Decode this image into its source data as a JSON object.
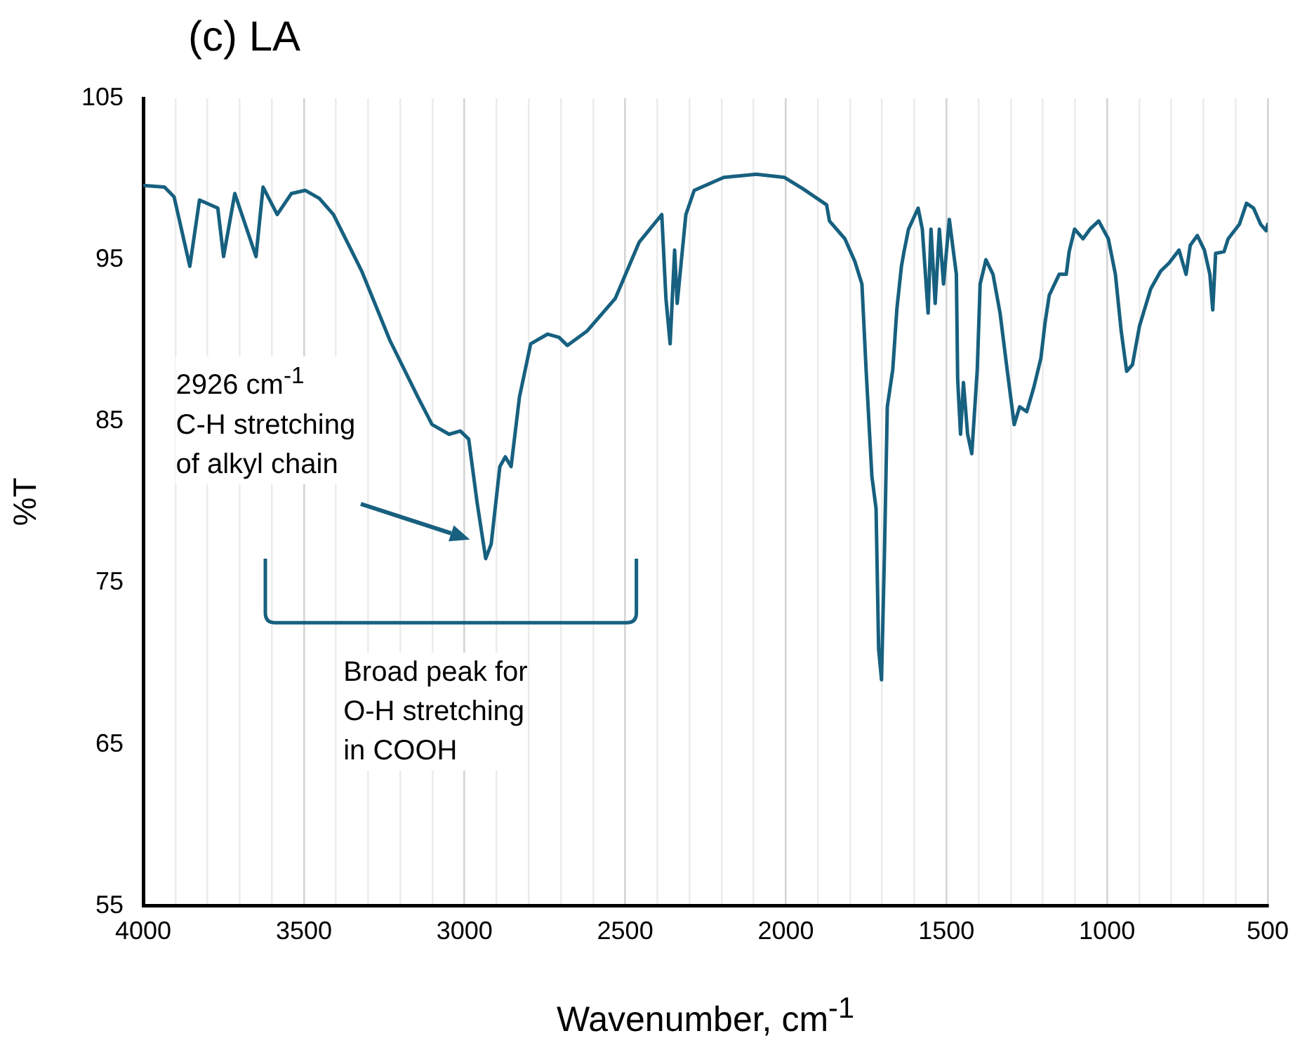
{
  "chart_data": {
    "type": "line",
    "title": "(c) LA",
    "xlabel": "Wavenumber, cm$^{-1}$",
    "ylabel": "%T",
    "xlim": [
      4000,
      500
    ],
    "ylim": [
      55,
      105
    ],
    "xticks": [
      4000,
      {
        "value": 3900,
        "label": null
      },
      {
        "value": 3800,
        "label": null
      },
      {
        "value": 3700,
        "label": null
      },
      {
        "value": 3600,
        "label": null
      },
      3500,
      {
        "value": 3400,
        "label": null
      },
      {
        "value": 3300,
        "label": null
      },
      {
        "value": 3200,
        "label": null
      },
      {
        "value": 3100,
        "label": null
      },
      3000,
      {
        "value": 2900,
        "label": null
      },
      {
        "value": 2800,
        "label": null
      },
      {
        "value": 2700,
        "label": null
      },
      {
        "value": 2600,
        "label": null
      },
      2500,
      {
        "value": 2400,
        "label": null
      },
      {
        "value": 2300,
        "label": null
      },
      {
        "value": 2200,
        "label": null
      },
      {
        "value": 2100,
        "label": null
      },
      2000,
      {
        "value": 1900,
        "label": null
      },
      {
        "value": 1800,
        "label": null
      },
      {
        "value": 1700,
        "label": null
      },
      {
        "value": 1600,
        "label": null
      },
      1500,
      {
        "value": 1400,
        "label": null
      },
      {
        "value": 1300,
        "label": null
      },
      {
        "value": 1200,
        "label": null
      },
      {
        "value": 1100,
        "label": null
      },
      1000,
      {
        "value": 900,
        "label": null
      },
      {
        "value": 800,
        "label": null
      },
      {
        "value": 700,
        "label": null
      },
      {
        "value": 600,
        "label": null
      },
      500
    ],
    "yticks": [
      55,
      65,
      75,
      85,
      95,
      105
    ],
    "grid": "x",
    "legend": false,
    "marker": "none",
    "line_style": "solid",
    "annotations": [
      "2926 cm$^{-1}$\nC-H stretching\nof alkyl chain",
      "Broad peak for\nO-H stretching\nin COOH"
    ],
    "series": [
      {
        "color": "#17607f",
        "x": [
          4000,
          3934,
          3904,
          3855,
          3825,
          3768,
          3750,
          3715,
          3649,
          3627,
          3583,
          3539,
          3496,
          3452,
          3408,
          3320,
          3232,
          3145,
          3101,
          3048,
          3013,
          2987,
          2961,
          2934,
          2917,
          2890,
          2873,
          2855,
          2829,
          2794,
          2741,
          2706,
          2680,
          2618,
          2531,
          2456,
          2386,
          2373,
          2360,
          2346,
          2338,
          2311,
          2285,
          2193,
          2092,
          2004,
          1947,
          1873,
          1864,
          1816,
          1785,
          1763,
          1750,
          1732,
          1719,
          1711,
          1702,
          1693,
          1684,
          1667,
          1654,
          1640,
          1632,
          1618,
          1588,
          1575,
          1557,
          1548,
          1535,
          1522,
          1509,
          1491,
          1482,
          1469,
          1465,
          1456,
          1447,
          1434,
          1421,
          1404,
          1395,
          1377,
          1355,
          1333,
          1311,
          1289,
          1272,
          1250,
          1228,
          1206,
          1193,
          1180,
          1149,
          1127,
          1118,
          1101,
          1075,
          1053,
          1026,
          996,
          974,
          956,
          939,
          921,
          899,
          864,
          833,
          807,
          776,
          754,
          741,
          719,
          697,
          680,
          671,
          662,
          636,
          623,
          588,
          566,
          544,
          522,
          505,
          500
        ],
        "values": [
          99.6,
          99.5,
          98.9,
          94.6,
          98.7,
          98.2,
          95.2,
          99.1,
          95.2,
          99.5,
          97.8,
          99.1,
          99.3,
          98.8,
          97.8,
          94.3,
          90.0,
          86.5,
          84.8,
          84.2,
          84.4,
          83.9,
          80.0,
          76.5,
          77.4,
          82.2,
          82.8,
          82.2,
          86.5,
          89.8,
          90.4,
          90.2,
          89.7,
          90.6,
          92.6,
          96.1,
          97.8,
          92.6,
          89.8,
          95.6,
          92.3,
          97.8,
          99.3,
          100.1,
          100.3,
          100.1,
          99.4,
          98.4,
          97.4,
          96.3,
          94.9,
          93.5,
          88.2,
          81.6,
          79.6,
          70.9,
          69.0,
          76.7,
          85.9,
          88.2,
          92.0,
          94.6,
          95.5,
          96.9,
          98.2,
          96.9,
          91.7,
          96.9,
          92.3,
          96.9,
          93.5,
          97.5,
          96.1,
          94.1,
          87.6,
          84.2,
          87.4,
          84.2,
          83.0,
          88.2,
          93.5,
          95.0,
          94.1,
          91.7,
          88.2,
          84.8,
          85.9,
          85.6,
          87.1,
          88.9,
          91.1,
          92.8,
          94.1,
          94.1,
          95.5,
          96.9,
          96.3,
          96.9,
          97.4,
          96.3,
          94.1,
          90.6,
          88.1,
          88.5,
          90.9,
          93.2,
          94.3,
          94.8,
          95.6,
          94.1,
          95.9,
          96.5,
          95.6,
          94.1,
          91.9,
          95.4,
          95.5,
          96.3,
          97.2,
          98.5,
          98.2,
          97.2,
          96.8,
          97.2
        ]
      }
    ]
  }
}
